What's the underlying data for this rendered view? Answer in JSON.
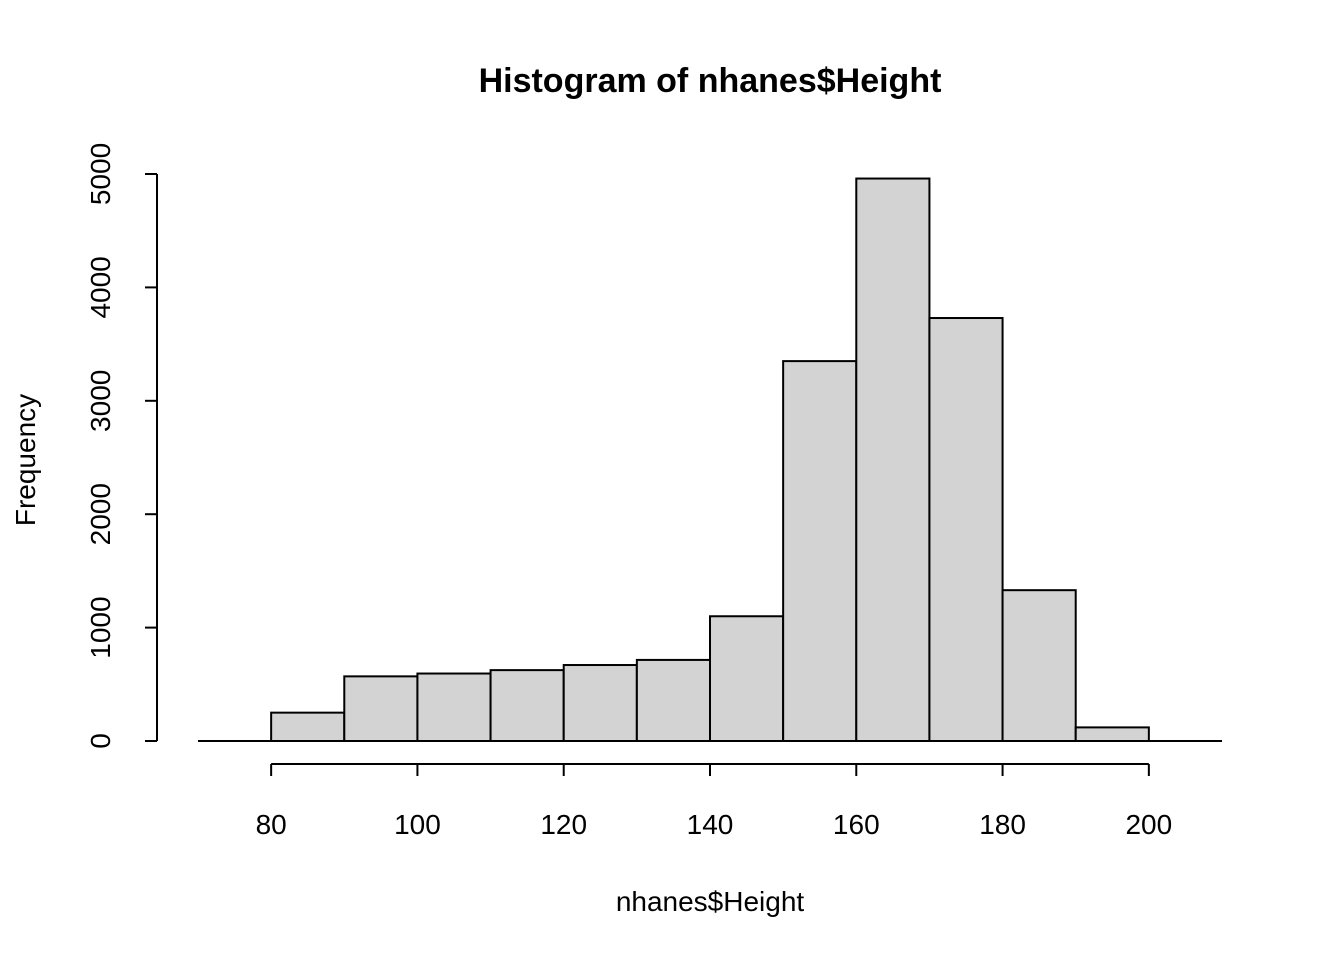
{
  "chart_data": {
    "type": "bar",
    "title": "Histogram of nhanes$Height",
    "xlabel": "nhanes$Height",
    "ylabel": "Frequency",
    "bin_edges": [
      80,
      90,
      100,
      110,
      120,
      130,
      140,
      150,
      160,
      170,
      180,
      190,
      200
    ],
    "values": [
      250,
      570,
      595,
      625,
      670,
      715,
      1100,
      3350,
      4960,
      3730,
      1330,
      120
    ],
    "xlim": [
      70,
      210
    ],
    "ylim": [
      0,
      5000
    ],
    "x_ticks": [
      80,
      100,
      120,
      140,
      160,
      180,
      200
    ],
    "y_ticks": [
      0,
      1000,
      2000,
      3000,
      4000,
      5000
    ],
    "x_tick_labels": [
      "80",
      "100",
      "120",
      "140",
      "160",
      "180",
      "200"
    ],
    "y_tick_labels": [
      "0",
      "1000",
      "2000",
      "3000",
      "4000",
      "5000"
    ],
    "grid": false,
    "colors": {
      "bar_fill": "#d3d3d3",
      "bar_stroke": "#000000"
    }
  }
}
